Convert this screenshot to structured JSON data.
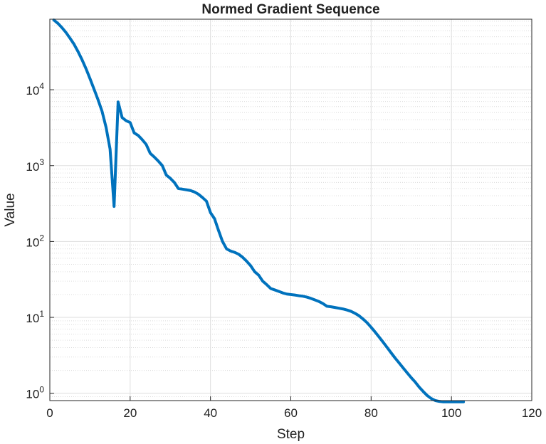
{
  "chart_data": {
    "type": "line",
    "title": "Normed Gradient Sequence",
    "xlabel": "Step",
    "ylabel": "Value",
    "xlim": [
      0,
      120
    ],
    "ylim": [
      0.8,
      85000
    ],
    "yscale": "log",
    "grid": true,
    "minor_grid": true,
    "x_ticks": [
      0,
      20,
      40,
      60,
      80,
      100,
      120
    ],
    "y_ticks": [
      {
        "base": "10",
        "exp": "0",
        "value": 1
      },
      {
        "base": "10",
        "exp": "1",
        "value": 10
      },
      {
        "base": "10",
        "exp": "2",
        "value": 100
      },
      {
        "base": "10",
        "exp": "3",
        "value": 1000
      },
      {
        "base": "10",
        "exp": "4",
        "value": 10000
      }
    ],
    "line_color": "#0072BD",
    "series": [
      {
        "x": [
          1,
          2,
          3,
          4,
          5,
          6,
          7,
          8,
          9,
          10,
          11,
          12,
          13,
          14,
          15,
          16,
          17,
          18,
          19,
          20,
          21,
          22,
          23,
          24,
          25,
          26,
          27,
          28,
          29,
          30,
          31,
          32,
          33,
          34,
          35,
          36,
          37,
          38,
          39,
          40,
          41,
          42,
          43,
          44,
          45,
          46,
          47,
          48,
          49,
          50,
          51,
          52,
          53,
          54,
          55,
          56,
          57,
          58,
          59,
          60,
          61,
          62,
          63,
          64,
          65,
          66,
          67,
          68,
          69,
          70,
          71,
          72,
          73,
          74,
          75,
          76,
          77,
          78,
          79,
          80,
          81,
          82,
          83,
          84,
          85,
          86,
          87,
          88,
          89,
          90,
          91,
          92,
          93,
          94,
          95,
          96,
          97,
          98,
          99,
          100,
          101,
          102,
          103
        ],
        "y": [
          83000,
          75000,
          66000,
          57000,
          48000,
          40000,
          32000,
          25000,
          19000,
          14000,
          10200,
          7400,
          5200,
          3200,
          1650,
          290,
          6900,
          4300,
          3900,
          3700,
          2700,
          2500,
          2200,
          1900,
          1450,
          1300,
          1150,
          1000,
          750,
          680,
          600,
          500,
          490,
          480,
          470,
          450,
          420,
          380,
          340,
          240,
          200,
          140,
          100,
          80,
          75,
          72,
          68,
          62,
          55,
          48,
          40,
          36,
          30,
          27,
          24,
          23,
          22,
          21,
          20.3,
          20,
          19.7,
          19.3,
          19,
          18.5,
          17.8,
          17,
          16.2,
          15.2,
          14,
          13.8,
          13.5,
          13.2,
          12.9,
          12.5,
          12,
          11.3,
          10.5,
          9.5,
          8.5,
          7.4,
          6.4,
          5.5,
          4.7,
          4.0,
          3.4,
          2.9,
          2.5,
          2.15,
          1.85,
          1.6,
          1.4,
          1.2,
          1.05,
          0.93,
          0.85,
          0.8,
          0.78,
          0.77,
          0.77,
          0.77,
          0.77,
          0.77,
          0.77
        ]
      }
    ]
  }
}
